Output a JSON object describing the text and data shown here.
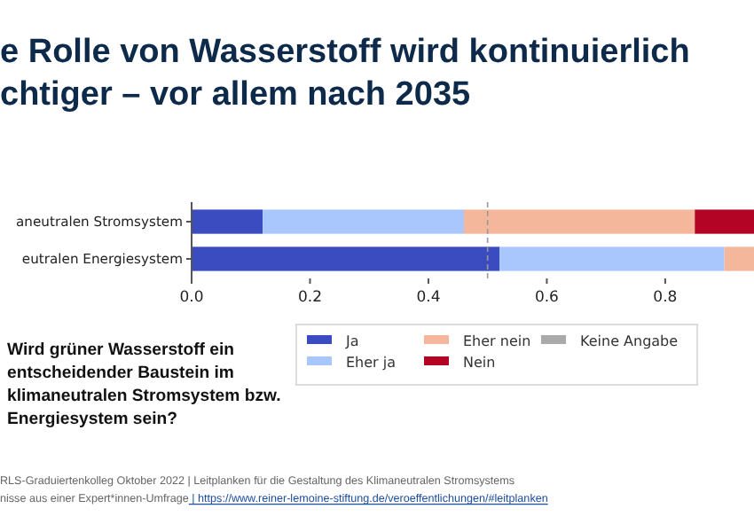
{
  "chart_data": {
    "type": "bar",
    "orientation": "horizontal",
    "stacked": true,
    "title": "e Rolle von Wasserstoff wird kontinuierlich\nchtiger – vor allem nach 2035",
    "categories": [
      "aneutralen Stromsystem",
      "eutralen Energiesystem"
    ],
    "series": [
      {
        "name": "Ja",
        "color": "#3b4cc0",
        "values": [
          0.12,
          0.52
        ]
      },
      {
        "name": "Eher ja",
        "color": "#aac7fd",
        "values": [
          0.34,
          0.38
        ]
      },
      {
        "name": "Eher nein",
        "color": "#f5b79b",
        "values": [
          0.39,
          0.05
        ]
      },
      {
        "name": "Nein",
        "color": "#b40426",
        "values": [
          0.1,
          null
        ]
      },
      {
        "name": "Keine Angabe",
        "color": "#aaaaaa",
        "values": [
          null,
          null
        ]
      }
    ],
    "xlim": [
      0,
      0.95
    ],
    "xticks": [
      {
        "value": 0,
        "label": "0.0"
      },
      {
        "value": 0.2,
        "label": "0.2"
      },
      {
        "value": 0.4,
        "label": "0.4"
      },
      {
        "value": 0.6,
        "label": "0.6"
      },
      {
        "value": 0.8,
        "label": "0.8"
      }
    ],
    "ref_lines": [
      {
        "axis": "x",
        "value": 0.5,
        "color": "#999999",
        "line_style": "dashed"
      }
    ],
    "legend": "bottom right",
    "annotations": [
      "Wird grüner Wasserstoff ein entscheidender Baustein im klimaneutralen Stromsystem bzw. Energiesystem sein?",
      "RLS-Graduiertenkolleg Oktober 2022 | Leitplanken für die Gestaltung des Klimaneutralen Stromsystems",
      "nisse aus einer Expert*innen-Umfrage | https://www.reiner-lemoine-stiftung.de/veroeffentlichungen/#leitplanken"
    ]
  }
}
